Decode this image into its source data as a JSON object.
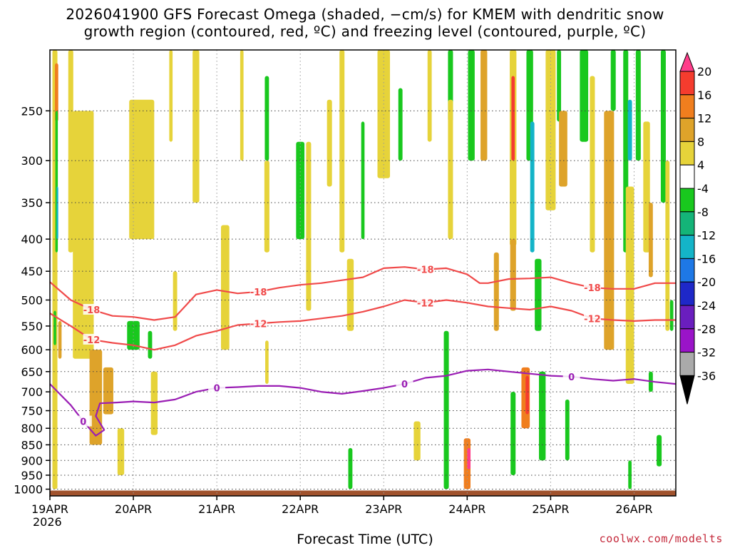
{
  "chart_data": {
    "type": "heatmap",
    "title_line1": "2026041900 GFS Forecast Omega (shaded, −cm/s) for KMEM with dendritic snow",
    "title_line2": "growth region (contoured, red, ºC) and freezing level (contoured, purple, ºC)",
    "xlabel": "Forecast Time (UTC)",
    "ylabel": "",
    "year_label": "2026",
    "source": "coolwx.com/modelts",
    "x_ticks": [
      {
        "label": "19APR",
        "day": 0
      },
      {
        "label": "20APR",
        "day": 1
      },
      {
        "label": "21APR",
        "day": 2
      },
      {
        "label": "22APR",
        "day": 3
      },
      {
        "label": "23APR",
        "day": 4
      },
      {
        "label": "24APR",
        "day": 5
      },
      {
        "label": "25APR",
        "day": 6
      },
      {
        "label": "26APR",
        "day": 7
      }
    ],
    "xlim_days": [
      0,
      7.5
    ],
    "y_ticks": [
      250,
      300,
      350,
      400,
      450,
      500,
      550,
      600,
      650,
      700,
      750,
      800,
      850,
      900,
      950,
      1000
    ],
    "ylim_hpa": [
      200,
      1025
    ],
    "y_scale": "log-pressure",
    "colorbar": {
      "labels": [
        "20",
        "16",
        "12",
        "8",
        "4",
        "-4",
        "-8",
        "-12",
        "-16",
        "-20",
        "-24",
        "-28",
        "-32",
        "-36"
      ],
      "bins": [
        {
          "color": "#ff3d8a"
        },
        {
          "color": "#f53c2e"
        },
        {
          "color": "#f07e1e"
        },
        {
          "color": "#dea32a"
        },
        {
          "color": "#e6d33a"
        },
        {
          "color": "#ffffff"
        },
        {
          "color": "#19c81e"
        },
        {
          "color": "#14b478"
        },
        {
          "color": "#14b4c8"
        },
        {
          "color": "#1e78e6"
        },
        {
          "color": "#1e28c8"
        },
        {
          "color": "#6a1ebe"
        },
        {
          "color": "#9a14c8"
        },
        {
          "color": "#aaaaaa"
        },
        {
          "color": "#000000"
        }
      ]
    },
    "series": [
      {
        "name": "-18",
        "color": "#f04a4a",
        "points": [
          [
            0,
            468
          ],
          [
            0.25,
            500
          ],
          [
            0.5,
            518
          ],
          [
            0.75,
            530
          ],
          [
            1,
            532
          ],
          [
            1.25,
            538
          ],
          [
            1.5,
            532
          ],
          [
            1.6,
            515
          ],
          [
            1.75,
            490
          ],
          [
            2,
            482
          ],
          [
            2.25,
            488
          ],
          [
            2.5,
            485
          ],
          [
            2.75,
            478
          ],
          [
            3,
            473
          ],
          [
            3.25,
            470
          ],
          [
            3.5,
            465
          ],
          [
            3.75,
            460
          ],
          [
            4,
            445
          ],
          [
            4.25,
            443
          ],
          [
            4.5,
            447
          ],
          [
            4.75,
            445
          ],
          [
            5,
            455
          ],
          [
            5.15,
            470
          ],
          [
            5.25,
            470
          ],
          [
            5.5,
            463
          ],
          [
            5.75,
            462
          ],
          [
            6,
            460
          ],
          [
            6.25,
            470
          ],
          [
            6.5,
            478
          ],
          [
            6.75,
            480
          ],
          [
            7,
            480
          ],
          [
            7.25,
            470
          ],
          [
            7.5,
            470
          ]
        ]
      },
      {
        "name": "-12",
        "color": "#f04a4a",
        "points": [
          [
            0,
            525
          ],
          [
            0.25,
            550
          ],
          [
            0.5,
            578
          ],
          [
            0.75,
            585
          ],
          [
            1,
            590
          ],
          [
            1.25,
            600
          ],
          [
            1.5,
            590
          ],
          [
            1.75,
            570
          ],
          [
            2,
            560
          ],
          [
            2.25,
            548
          ],
          [
            2.5,
            545
          ],
          [
            2.75,
            542
          ],
          [
            3,
            540
          ],
          [
            3.25,
            535
          ],
          [
            3.5,
            530
          ],
          [
            3.75,
            522
          ],
          [
            4,
            512
          ],
          [
            4.25,
            500
          ],
          [
            4.5,
            505
          ],
          [
            4.75,
            500
          ],
          [
            5,
            505
          ],
          [
            5.25,
            512
          ],
          [
            5.5,
            515
          ],
          [
            5.75,
            518
          ],
          [
            6,
            512
          ],
          [
            6.25,
            520
          ],
          [
            6.5,
            535
          ],
          [
            6.75,
            538
          ],
          [
            7,
            540
          ],
          [
            7.25,
            538
          ],
          [
            7.5,
            538
          ]
        ]
      },
      {
        "name": "0",
        "color": "#9a1eb4",
        "points": [
          [
            0,
            680
          ],
          [
            0.25,
            735
          ],
          [
            0.4,
            780
          ],
          [
            0.55,
            822
          ],
          [
            0.65,
            805
          ],
          [
            0.55,
            765
          ],
          [
            0.6,
            730
          ],
          [
            0.8,
            728
          ],
          [
            1,
            725
          ],
          [
            1.25,
            728
          ],
          [
            1.5,
            720
          ],
          [
            1.75,
            700
          ],
          [
            2,
            690
          ],
          [
            2.25,
            688
          ],
          [
            2.5,
            685
          ],
          [
            2.75,
            685
          ],
          [
            3,
            690
          ],
          [
            3.25,
            700
          ],
          [
            3.5,
            705
          ],
          [
            3.75,
            698
          ],
          [
            4,
            690
          ],
          [
            4.25,
            680
          ],
          [
            4.5,
            665
          ],
          [
            4.75,
            660
          ],
          [
            5,
            648
          ],
          [
            5.25,
            645
          ],
          [
            5.5,
            650
          ],
          [
            5.75,
            655
          ],
          [
            6,
            660
          ],
          [
            6.25,
            662
          ],
          [
            6.5,
            668
          ],
          [
            6.75,
            672
          ],
          [
            7,
            668
          ],
          [
            7.25,
            675
          ],
          [
            7.5,
            680
          ]
        ]
      }
    ],
    "shaded_cells": [
      {
        "day": 0.06,
        "w": 0.06,
        "p1": 200,
        "p2": 1000,
        "v": 5
      },
      {
        "day": 0.08,
        "w": 0.04,
        "p1": 210,
        "p2": 260,
        "v": 14
      },
      {
        "day": 0.08,
        "w": 0.03,
        "p1": 250,
        "p2": 420,
        "v": -10
      },
      {
        "day": 0.09,
        "w": 0.02,
        "p1": 330,
        "p2": 400,
        "v": -18
      },
      {
        "day": 0.06,
        "w": 0.03,
        "p1": 520,
        "p2": 590,
        "v": -10
      },
      {
        "day": 0.12,
        "w": 0.04,
        "p1": 540,
        "p2": 620,
        "v": 10
      },
      {
        "day": 0.25,
        "w": 0.06,
        "p1": 200,
        "p2": 420,
        "v": 5
      },
      {
        "day": 0.4,
        "w": 0.25,
        "p1": 250,
        "p2": 620,
        "v": 5
      },
      {
        "day": 0.55,
        "w": 0.15,
        "p1": 600,
        "p2": 850,
        "v": 9
      },
      {
        "day": 0.7,
        "w": 0.12,
        "p1": 640,
        "p2": 760,
        "v": 10
      },
      {
        "day": 0.85,
        "w": 0.08,
        "p1": 800,
        "p2": 950,
        "v": 6
      },
      {
        "day": 1.1,
        "w": 0.3,
        "p1": 240,
        "p2": 400,
        "v": 6
      },
      {
        "day": 1.0,
        "w": 0.15,
        "p1": 540,
        "p2": 600,
        "v": -9
      },
      {
        "day": 1.2,
        "w": 0.05,
        "p1": 560,
        "p2": 620,
        "v": -8
      },
      {
        "day": 1.25,
        "w": 0.08,
        "p1": 650,
        "p2": 820,
        "v": 5
      },
      {
        "day": 1.45,
        "w": 0.04,
        "p1": 200,
        "p2": 280,
        "v": 5
      },
      {
        "day": 1.5,
        "w": 0.05,
        "p1": 450,
        "p2": 560,
        "v": 6
      },
      {
        "day": 1.75,
        "w": 0.08,
        "p1": 200,
        "p2": 350,
        "v": 5
      },
      {
        "day": 2.1,
        "w": 0.1,
        "p1": 380,
        "p2": 600,
        "v": 6
      },
      {
        "day": 2.3,
        "w": 0.04,
        "p1": 200,
        "p2": 300,
        "v": 5
      },
      {
        "day": 2.6,
        "w": 0.05,
        "p1": 220,
        "p2": 300,
        "v": -9
      },
      {
        "day": 2.6,
        "w": 0.06,
        "p1": 300,
        "p2": 420,
        "v": 5
      },
      {
        "day": 2.6,
        "w": 0.04,
        "p1": 580,
        "p2": 680,
        "v": 5
      },
      {
        "day": 3.0,
        "w": 0.1,
        "p1": 280,
        "p2": 400,
        "v": -9
      },
      {
        "day": 3.1,
        "w": 0.06,
        "p1": 280,
        "p2": 520,
        "v": 5
      },
      {
        "day": 3.35,
        "w": 0.06,
        "p1": 240,
        "p2": 330,
        "v": 5
      },
      {
        "day": 3.5,
        "w": 0.06,
        "p1": 200,
        "p2": 420,
        "v": 5
      },
      {
        "day": 3.6,
        "w": 0.08,
        "p1": 430,
        "p2": 560,
        "v": 6
      },
      {
        "day": 3.6,
        "w": 0.05,
        "p1": 860,
        "p2": 1000,
        "v": -9
      },
      {
        "day": 3.75,
        "w": 0.04,
        "p1": 260,
        "p2": 400,
        "v": -8
      },
      {
        "day": 4.0,
        "w": 0.15,
        "p1": 200,
        "p2": 320,
        "v": 5
      },
      {
        "day": 4.2,
        "w": 0.05,
        "p1": 230,
        "p2": 300,
        "v": -8
      },
      {
        "day": 4.4,
        "w": 0.08,
        "p1": 780,
        "p2": 900,
        "v": 5
      },
      {
        "day": 4.55,
        "w": 0.05,
        "p1": 200,
        "p2": 280,
        "v": 6
      },
      {
        "day": 4.8,
        "w": 0.06,
        "p1": 200,
        "p2": 260,
        "v": -9
      },
      {
        "day": 4.8,
        "w": 0.06,
        "p1": 240,
        "p2": 400,
        "v": 5
      },
      {
        "day": 4.75,
        "w": 0.06,
        "p1": 560,
        "p2": 1000,
        "v": -9
      },
      {
        "day": 5.0,
        "w": 0.08,
        "p1": 830,
        "p2": 1000,
        "v": 14
      },
      {
        "day": 5.02,
        "w": 0.04,
        "p1": 860,
        "p2": 930,
        "v": 22
      },
      {
        "day": 5.05,
        "w": 0.08,
        "p1": 200,
        "p2": 300,
        "v": -8
      },
      {
        "day": 5.2,
        "w": 0.08,
        "p1": 200,
        "p2": 300,
        "v": 8
      },
      {
        "day": 5.35,
        "w": 0.06,
        "p1": 420,
        "p2": 560,
        "v": 8
      },
      {
        "day": 5.55,
        "w": 0.08,
        "p1": 200,
        "p2": 410,
        "v": 6
      },
      {
        "day": 5.55,
        "w": 0.04,
        "p1": 220,
        "p2": 300,
        "v": 17
      },
      {
        "day": 5.55,
        "w": 0.07,
        "p1": 400,
        "p2": 520,
        "v": 9
      },
      {
        "day": 5.55,
        "w": 0.06,
        "p1": 700,
        "p2": 950,
        "v": -9
      },
      {
        "day": 5.75,
        "w": 0.08,
        "p1": 200,
        "p2": 300,
        "v": -9
      },
      {
        "day": 5.78,
        "w": 0.05,
        "p1": 260,
        "p2": 420,
        "v": -17
      },
      {
        "day": 5.85,
        "w": 0.08,
        "p1": 430,
        "p2": 560,
        "v": -9
      },
      {
        "day": 5.7,
        "w": 0.1,
        "p1": 640,
        "p2": 800,
        "v": 12
      },
      {
        "day": 5.72,
        "w": 0.04,
        "p1": 660,
        "p2": 760,
        "v": 17
      },
      {
        "day": 5.9,
        "w": 0.08,
        "p1": 650,
        "p2": 900,
        "v": -9
      },
      {
        "day": 6.0,
        "w": 0.12,
        "p1": 200,
        "p2": 360,
        "v": 5
      },
      {
        "day": 6.1,
        "w": 0.05,
        "p1": 200,
        "p2": 260,
        "v": -9
      },
      {
        "day": 6.15,
        "w": 0.1,
        "p1": 250,
        "p2": 330,
        "v": 10
      },
      {
        "day": 6.2,
        "w": 0.05,
        "p1": 720,
        "p2": 900,
        "v": -8
      },
      {
        "day": 6.4,
        "w": 0.1,
        "p1": 200,
        "p2": 280,
        "v": -9
      },
      {
        "day": 6.5,
        "w": 0.06,
        "p1": 220,
        "p2": 420,
        "v": 6
      },
      {
        "day": 6.7,
        "w": 0.12,
        "p1": 250,
        "p2": 600,
        "v": 8
      },
      {
        "day": 6.75,
        "w": 0.06,
        "p1": 200,
        "p2": 250,
        "v": -9
      },
      {
        "day": 6.9,
        "w": 0.06,
        "p1": 200,
        "p2": 420,
        "v": -9
      },
      {
        "day": 6.95,
        "w": 0.05,
        "p1": 240,
        "p2": 300,
        "v": -18
      },
      {
        "day": 6.95,
        "w": 0.1,
        "p1": 330,
        "p2": 680,
        "v": 6
      },
      {
        "day": 7.05,
        "w": 0.06,
        "p1": 200,
        "p2": 300,
        "v": -8
      },
      {
        "day": 7.15,
        "w": 0.08,
        "p1": 260,
        "p2": 420,
        "v": 5
      },
      {
        "day": 7.2,
        "w": 0.05,
        "p1": 350,
        "p2": 460,
        "v": 9
      },
      {
        "day": 7.35,
        "w": 0.06,
        "p1": 200,
        "p2": 350,
        "v": -9
      },
      {
        "day": 7.4,
        "w": 0.05,
        "p1": 300,
        "p2": 560,
        "v": 5
      },
      {
        "day": 7.45,
        "w": 0.04,
        "p1": 500,
        "p2": 560,
        "v": -9
      },
      {
        "day": 7.3,
        "w": 0.06,
        "p1": 820,
        "p2": 920,
        "v": -9
      },
      {
        "day": 6.95,
        "w": 0.04,
        "p1": 900,
        "p2": 1000,
        "v": -9
      },
      {
        "day": 7.2,
        "w": 0.05,
        "p1": 650,
        "p2": 700,
        "v": -9
      }
    ],
    "terrain": {
      "color": "#a0522d",
      "p_top": 1005
    }
  }
}
